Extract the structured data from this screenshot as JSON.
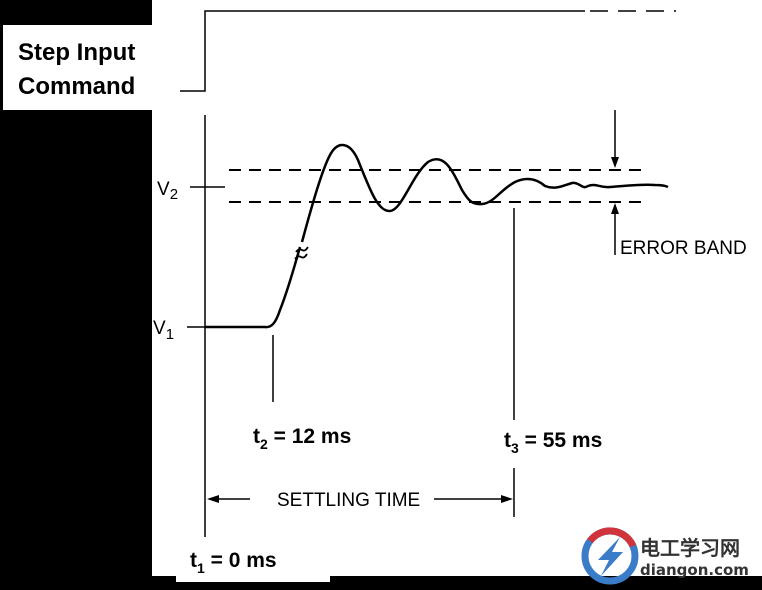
{
  "step_label_line1": "Step Input",
  "step_label_line2": "Command",
  "partial_label": "e",
  "v2_label": "V",
  "v2_sub": "2",
  "v1_label": "V",
  "v1_sub": "1",
  "error_band_label": "ERROR BAND",
  "settling_time_label": "SETTLING TIME",
  "t1": {
    "name": "t",
    "sub": "1",
    "value": " = 0 ms"
  },
  "t2": {
    "name": "t",
    "sub": "2",
    "value": " = 12 ms"
  },
  "t3": {
    "name": "t",
    "sub": "3",
    "value": " = 55 ms"
  },
  "watermark": {
    "cn": "电工学习网",
    "domain": "diangon.com"
  },
  "colors": {
    "logo_red": "#d0343a",
    "logo_blue": "#3a7cc8"
  }
}
